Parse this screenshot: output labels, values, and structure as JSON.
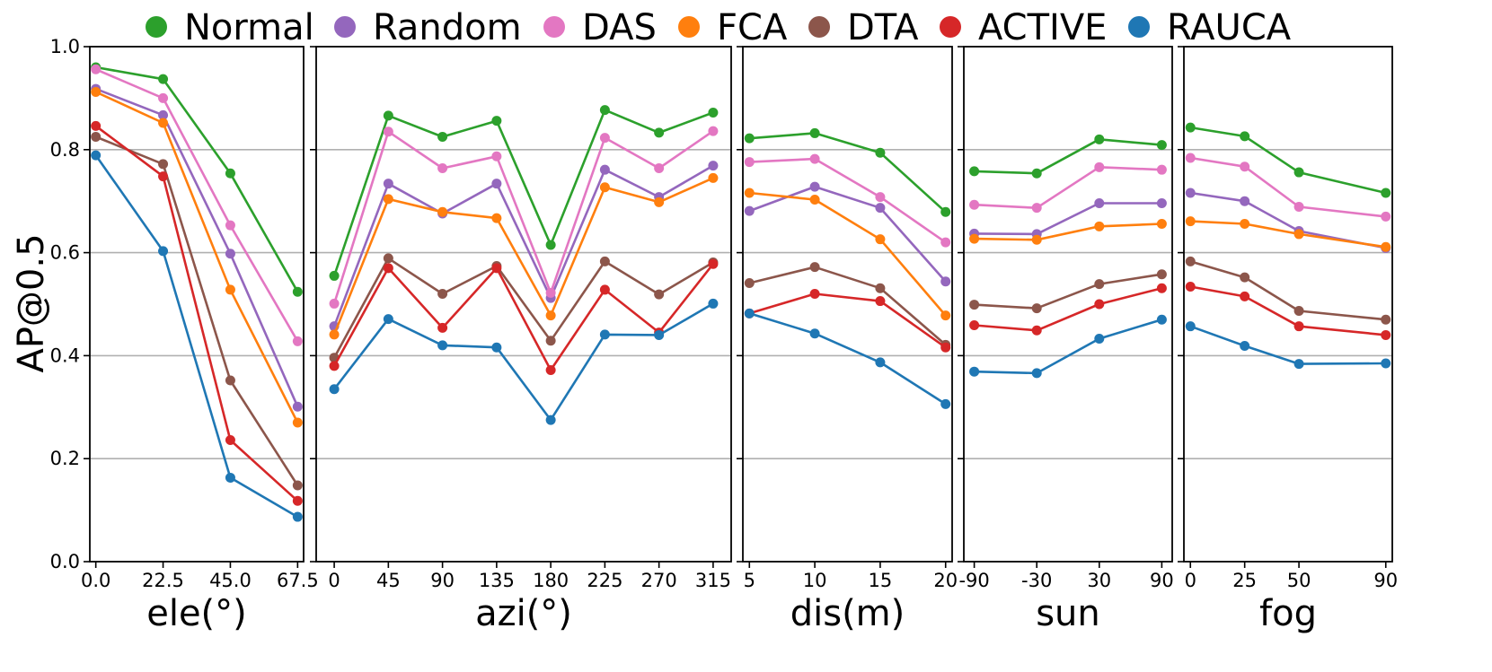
{
  "chart_data": {
    "type": "line",
    "ylabel": "AP@0.5",
    "ylim": [
      0,
      1
    ],
    "yticks": [
      "0.0",
      "0.2",
      "0.4",
      "0.6",
      "0.8",
      "1.0"
    ],
    "ytick_values": [
      0,
      0.2,
      0.4,
      0.6,
      0.8,
      1.0
    ],
    "grid": "horizontal",
    "legend": {
      "placement": "top",
      "entries": [
        {
          "name": "Normal",
          "color": "#2ca02c"
        },
        {
          "name": "Random",
          "color": "#9467bd"
        },
        {
          "name": "DAS",
          "color": "#e377c2"
        },
        {
          "name": "FCA",
          "color": "#ff7f0e"
        },
        {
          "name": "DTA",
          "color": "#8c564b"
        },
        {
          "name": "ACTIVE",
          "color": "#d62728"
        },
        {
          "name": "RAUCA",
          "color": "#1f77b4"
        }
      ]
    },
    "panels": [
      {
        "id": "ele",
        "xlabel": "ele(°)",
        "x": [
          0,
          22.5,
          45,
          67.5
        ],
        "xlim": [
          -2,
          69.5
        ],
        "xticks": [
          "0.0",
          "22.5",
          "45.0",
          "67.5"
        ],
        "series": [
          {
            "name": "Normal",
            "values": [
              0.96,
              0.937,
              0.754,
              0.524
            ]
          },
          {
            "name": "Random",
            "values": [
              0.918,
              0.867,
              0.598,
              0.301
            ]
          },
          {
            "name": "DAS",
            "values": [
              0.956,
              0.9,
              0.653,
              0.428
            ]
          },
          {
            "name": "FCA",
            "values": [
              0.912,
              0.852,
              0.528,
              0.27
            ]
          },
          {
            "name": "DTA",
            "values": [
              0.825,
              0.772,
              0.352,
              0.148
            ]
          },
          {
            "name": "ACTIVE",
            "values": [
              0.846,
              0.748,
              0.236,
              0.118
            ]
          },
          {
            "name": "RAUCA",
            "values": [
              0.789,
              0.603,
              0.163,
              0.087
            ]
          }
        ]
      },
      {
        "id": "azi",
        "xlabel": "azi(°)",
        "x": [
          0,
          45,
          90,
          135,
          180,
          225,
          270,
          315
        ],
        "xlim": [
          -15,
          330
        ],
        "xticks": [
          "0",
          "45",
          "90",
          "135",
          "180",
          "225",
          "270",
          "315"
        ],
        "series": [
          {
            "name": "Normal",
            "values": [
              0.555,
              0.866,
              0.825,
              0.856,
              0.615,
              0.877,
              0.833,
              0.872
            ]
          },
          {
            "name": "Random",
            "values": [
              0.457,
              0.734,
              0.676,
              0.734,
              0.512,
              0.761,
              0.708,
              0.769
            ]
          },
          {
            "name": "DAS",
            "values": [
              0.501,
              0.835,
              0.764,
              0.787,
              0.522,
              0.823,
              0.764,
              0.836
            ]
          },
          {
            "name": "FCA",
            "values": [
              0.441,
              0.704,
              0.679,
              0.667,
              0.478,
              0.727,
              0.698,
              0.745
            ]
          },
          {
            "name": "DTA",
            "values": [
              0.396,
              0.589,
              0.52,
              0.574,
              0.429,
              0.583,
              0.519,
              0.581
            ]
          },
          {
            "name": "ACTIVE",
            "values": [
              0.38,
              0.57,
              0.454,
              0.57,
              0.372,
              0.528,
              0.445,
              0.578
            ]
          },
          {
            "name": "RAUCA",
            "values": [
              0.335,
              0.471,
              0.42,
              0.416,
              0.275,
              0.441,
              0.44,
              0.501
            ]
          }
        ]
      },
      {
        "id": "dis",
        "xlabel": "dis(m)",
        "x": [
          5,
          10,
          15,
          20
        ],
        "xlim": [
          4.5,
          20.5
        ],
        "xticks": [
          "5",
          "10",
          "15",
          "20"
        ],
        "series": [
          {
            "name": "Normal",
            "values": [
              0.822,
              0.832,
              0.794,
              0.679
            ]
          },
          {
            "name": "Random",
            "values": [
              0.681,
              0.728,
              0.687,
              0.544
            ]
          },
          {
            "name": "DAS",
            "values": [
              0.776,
              0.782,
              0.708,
              0.62
            ]
          },
          {
            "name": "FCA",
            "values": [
              0.716,
              0.703,
              0.626,
              0.478
            ]
          },
          {
            "name": "DTA",
            "values": [
              0.541,
              0.572,
              0.531,
              0.421
            ]
          },
          {
            "name": "ACTIVE",
            "values": [
              0.482,
              0.52,
              0.506,
              0.416
            ]
          },
          {
            "name": "RAUCA",
            "values": [
              0.482,
              0.443,
              0.387,
              0.306
            ]
          }
        ]
      },
      {
        "id": "sun",
        "xlabel": "sun",
        "x": [
          -90,
          -30,
          30,
          90
        ],
        "xlim": [
          -100,
          100
        ],
        "xticks": [
          "-90",
          "-30",
          "30",
          "90"
        ],
        "series": [
          {
            "name": "Normal",
            "values": [
              0.758,
              0.754,
              0.82,
              0.809
            ]
          },
          {
            "name": "Random",
            "values": [
              0.637,
              0.636,
              0.696,
              0.696
            ]
          },
          {
            "name": "DAS",
            "values": [
              0.693,
              0.687,
              0.766,
              0.761
            ]
          },
          {
            "name": "FCA",
            "values": [
              0.627,
              0.625,
              0.651,
              0.656
            ]
          },
          {
            "name": "DTA",
            "values": [
              0.499,
              0.492,
              0.539,
              0.558
            ]
          },
          {
            "name": "ACTIVE",
            "values": [
              0.459,
              0.449,
              0.5,
              0.531
            ]
          },
          {
            "name": "RAUCA",
            "values": [
              0.369,
              0.366,
              0.433,
              0.47
            ]
          }
        ]
      },
      {
        "id": "fog",
        "xlabel": "fog",
        "x": [
          0,
          25,
          50,
          90
        ],
        "xlim": [
          -3,
          93
        ],
        "xticks": [
          "0",
          "25",
          "50",
          "90"
        ],
        "series": [
          {
            "name": "Normal",
            "values": [
              0.843,
              0.826,
              0.756,
              0.716
            ]
          },
          {
            "name": "Random",
            "values": [
              0.716,
              0.7,
              0.642,
              0.609
            ]
          },
          {
            "name": "DAS",
            "values": [
              0.784,
              0.767,
              0.689,
              0.67
            ]
          },
          {
            "name": "FCA",
            "values": [
              0.661,
              0.656,
              0.636,
              0.611
            ]
          },
          {
            "name": "DTA",
            "values": [
              0.583,
              0.552,
              0.487,
              0.47
            ]
          },
          {
            "name": "ACTIVE",
            "values": [
              0.534,
              0.515,
              0.457,
              0.44
            ]
          },
          {
            "name": "RAUCA",
            "values": [
              0.457,
              0.419,
              0.384,
              0.385
            ]
          }
        ]
      }
    ]
  }
}
